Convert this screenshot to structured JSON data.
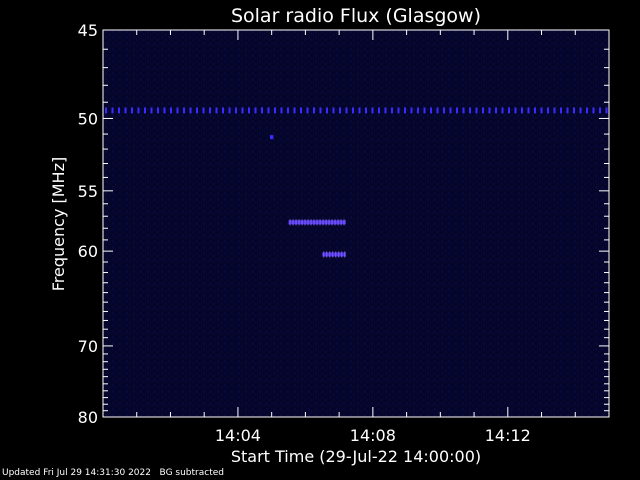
{
  "chart_data": {
    "type": "heatmap",
    "title": "Solar radio Flux (Glasgow)",
    "xlabel": "Start Time (29-Jul-22 14:00:00)",
    "ylabel": "Frequency [MHz]",
    "x_range_minutes": [
      0,
      15
    ],
    "x_ticks": [
      {
        "minute": 4,
        "label": "14:04"
      },
      {
        "minute": 8,
        "label": "14:08"
      },
      {
        "minute": 12,
        "label": "14:12"
      }
    ],
    "y_range_mhz": [
      45,
      80
    ],
    "y_scale": "reciprocal",
    "y_ticks": [
      {
        "mhz": 45,
        "label": "45"
      },
      {
        "mhz": 50,
        "label": "50"
      },
      {
        "mhz": 55,
        "label": "55"
      },
      {
        "mhz": 60,
        "label": "60"
      },
      {
        "mhz": 70,
        "label": "70"
      },
      {
        "mhz": 80,
        "label": "80"
      }
    ],
    "background_color": "#05052a",
    "features": [
      {
        "type": "interference_line",
        "mhz": 49.5,
        "minute_from": 0,
        "minute_to": 15,
        "color": "#3a2cff"
      },
      {
        "type": "burst",
        "mhz": 57.5,
        "minute_from": 5.5,
        "minute_to": 7.2,
        "color": "#5a3cff"
      },
      {
        "type": "burst",
        "mhz": 60.3,
        "minute_from": 6.5,
        "minute_to": 7.2,
        "color": "#5a3cff"
      },
      {
        "type": "spot",
        "mhz": 51.2,
        "minute_from": 4.95,
        "minute_to": 5.05,
        "color": "#3a2cff"
      }
    ]
  },
  "footer": {
    "text": "Updated Fri Jul 29 14:31:30 2022   BG subtracted"
  }
}
